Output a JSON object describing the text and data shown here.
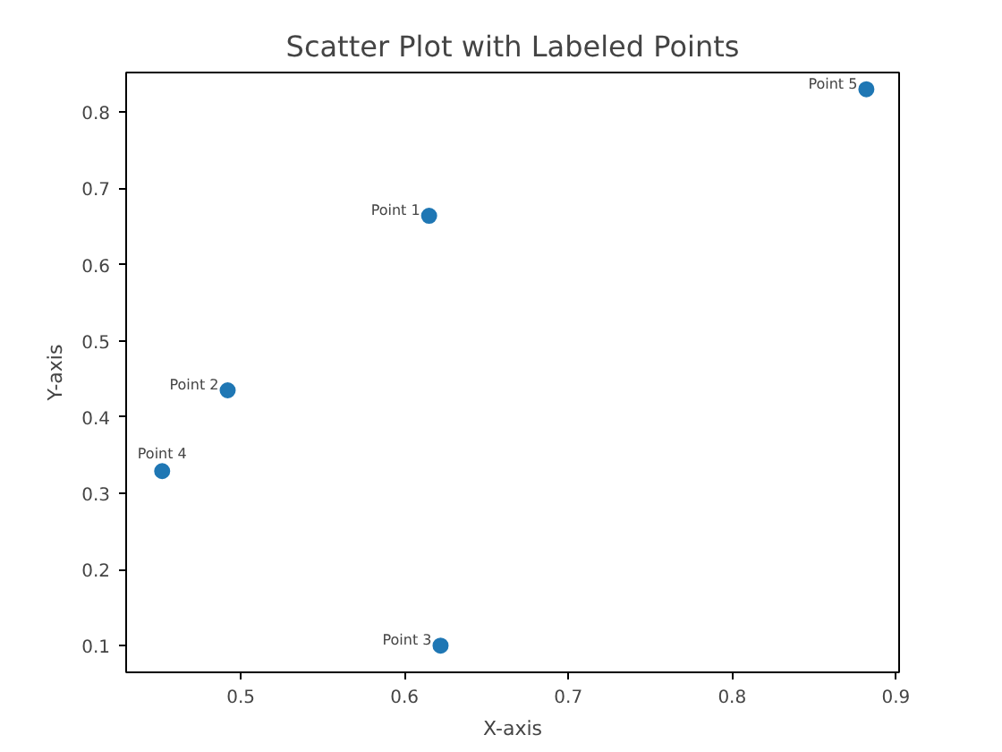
{
  "chart_data": {
    "type": "scatter",
    "title": "Scatter Plot with Labeled Points",
    "xlabel": "X-axis",
    "ylabel": "Y-axis",
    "x": [
      0.615,
      0.492,
      0.622,
      0.452,
      0.882
    ],
    "series": [
      {
        "color": "#1f77b4",
        "values": [
          0.664,
          0.435,
          0.1,
          0.329,
          0.83
        ]
      }
    ],
    "annotations": [
      {
        "text": "Point 1",
        "x": 0.615,
        "y": 0.664
      },
      {
        "text": "Point 2",
        "x": 0.492,
        "y": 0.435
      },
      {
        "text": "Point 3",
        "x": 0.622,
        "y": 0.1
      },
      {
        "text": "Point 4",
        "x": 0.452,
        "y": 0.329
      },
      {
        "text": "Point 5",
        "x": 0.882,
        "y": 0.83
      }
    ],
    "xlim": [
      0.43,
      0.902
    ],
    "ylim": [
      0.065,
      0.852
    ],
    "xticks": [
      0.5,
      0.6,
      0.7,
      0.8,
      0.9
    ],
    "yticks": [
      0.1,
      0.2,
      0.3,
      0.4,
      0.5,
      0.6,
      0.7,
      0.8
    ],
    "grid": false,
    "marker": "circle"
  }
}
